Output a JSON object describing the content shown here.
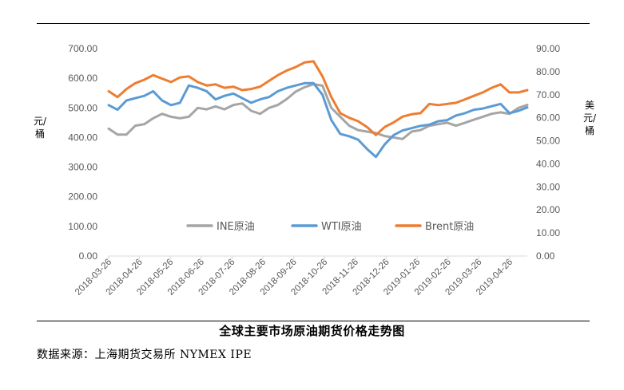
{
  "chart_data": {
    "type": "line",
    "left_unit": "元/桶",
    "right_unit": "美元/桶",
    "y_left_ticks": [
      "0.00",
      "100.00",
      "200.00",
      "300.00",
      "400.00",
      "500.00",
      "600.00",
      "700.00"
    ],
    "y_right_ticks": [
      "0.00",
      "10.00",
      "20.00",
      "30.00",
      "40.00",
      "50.00",
      "60.00",
      "70.00",
      "80.00",
      "90.00"
    ],
    "y_left_range": [
      0,
      700
    ],
    "y_right_range": [
      0,
      90
    ],
    "x_ticks": [
      "2018-03-26",
      "2018-04-26",
      "2018-05-26",
      "2018-06-26",
      "2018-07-26",
      "2018-08-26",
      "2018-09-26",
      "2018-10-26",
      "2018-11-26",
      "2018-12-26",
      "2019-01-26",
      "2019-02-26",
      "2019-03-26",
      "2019-04-26"
    ],
    "legend_position": "center",
    "series": [
      {
        "name": "INE原油",
        "axis": "left",
        "color": "#a5a5a5",
        "values": [
          430,
          410,
          410,
          440,
          445,
          465,
          480,
          470,
          465,
          470,
          500,
          495,
          505,
          495,
          510,
          515,
          490,
          480,
          500,
          510,
          530,
          555,
          570,
          580,
          575,
          500,
          470,
          440,
          425,
          420,
          415,
          405,
          400,
          395,
          420,
          425,
          440,
          445,
          450,
          440,
          450,
          460,
          470,
          480,
          485,
          480,
          500,
          510
        ]
      },
      {
        "name": "WTI原油",
        "axis": "right",
        "color": "#5b9bd5",
        "values": [
          65.5,
          63.5,
          67.5,
          68.5,
          69.5,
          71.5,
          67.5,
          65.5,
          66.5,
          74,
          73,
          71.5,
          68,
          69.5,
          70.5,
          68.5,
          66.5,
          68,
          69,
          71.5,
          73,
          74,
          75,
          75,
          70,
          59,
          53,
          52,
          50.5,
          46.5,
          43,
          48.5,
          52.5,
          54.5,
          55.5,
          56.5,
          57,
          58.5,
          59,
          61,
          62,
          63.5,
          64,
          65,
          66,
          62,
          63,
          64.5
        ]
      },
      {
        "name": "Brent原油",
        "axis": "right",
        "color": "#ed7d31",
        "values": [
          71.5,
          69,
          72.5,
          75,
          76.5,
          78.5,
          77,
          75.5,
          77.5,
          78,
          75.5,
          74,
          74.5,
          73,
          73.5,
          72,
          72.5,
          73.5,
          76,
          78.5,
          80.5,
          82,
          84,
          84.5,
          78,
          69,
          62,
          60,
          58.5,
          56,
          52.5,
          56,
          58,
          60.5,
          61.5,
          62,
          66,
          65.5,
          66,
          66.5,
          68,
          69.5,
          71,
          73,
          74.5,
          71,
          71,
          72
        ]
      }
    ]
  },
  "caption": "全球主要市场原油期货价格走势图",
  "source": "数据来源：上海期货交易所 NYMEX  IPE"
}
